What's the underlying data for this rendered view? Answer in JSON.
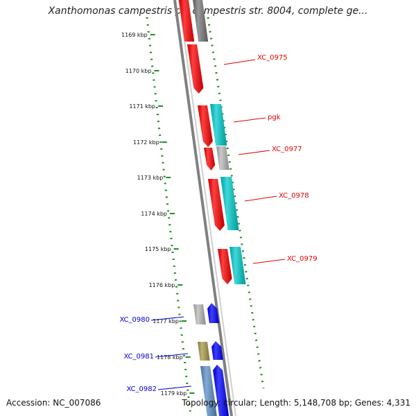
{
  "title": "Xanthomonas campestris pv. campestris str. 8004, complete ge...",
  "footer": {
    "accession": "Accession: NC_007086",
    "topology": "Topology: circular; Length: 5,148,708 bp; Genes: 4,331"
  },
  "ruler": {
    "ticks": [
      "1169 kbp",
      "1170 kbp",
      "1171 kbp",
      "1172 kbp",
      "1173 kbp",
      "1174 kbp",
      "1175 kbp",
      "1176 kbp",
      "1177 kbp",
      "1178 kbp",
      "1179 kbp"
    ]
  },
  "labels": [
    {
      "text": "XC_0975",
      "color": "#e00000"
    },
    {
      "text": "pgk",
      "color": "#e00000"
    },
    {
      "text": "XC_0977",
      "color": "#e00000"
    },
    {
      "text": "XC_0978",
      "color": "#e00000"
    },
    {
      "text": "XC_0979",
      "color": "#e00000"
    },
    {
      "text": "XC_0980",
      "color": "#0000cc"
    },
    {
      "text": "XC_0981",
      "color": "#0000cc"
    },
    {
      "text": "XC_0982",
      "color": "#0000cc"
    }
  ],
  "colors": {
    "red": "#ff0000",
    "cyan": "#00cccc",
    "blue": "#0000ff",
    "gray": "#b8b8b8",
    "darkgray": "#777777",
    "olive": "#a89a4a",
    "steelblue": "#5b8fc8",
    "ruler": "#228b22",
    "backbone": "#808080"
  }
}
